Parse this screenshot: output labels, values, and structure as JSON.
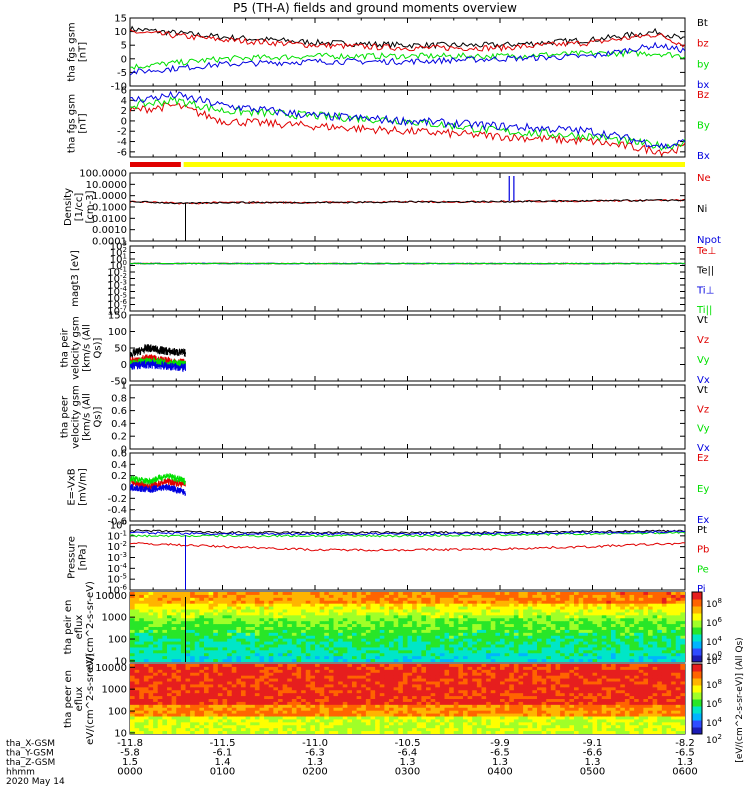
{
  "title": "P5 (TH-A) fields and ground moments overview",
  "colors": {
    "black": "#000000",
    "red": "#e00000",
    "green": "#00e000",
    "blue": "#0000e0",
    "yellow": "#ffff00",
    "bar_red": "#e00000"
  },
  "chart_data": [
    {
      "type": "line",
      "ylabel": "tha fgs gsm [nT]",
      "ylim": [
        -10,
        15
      ],
      "yticks": [
        15,
        10,
        5,
        0,
        -5,
        -10
      ],
      "legend": [
        "Bt",
        "bz",
        "by",
        "bx"
      ],
      "legend_colors": [
        "black",
        "red",
        "green",
        "blue"
      ],
      "x_hours": [
        0,
        1,
        2,
        3,
        4,
        5,
        5.7,
        6
      ],
      "series": [
        {
          "name": "Bt",
          "color": "black",
          "values": [
            11,
            8,
            6,
            5,
            5,
            7,
            10,
            7
          ]
        },
        {
          "name": "bz",
          "color": "red",
          "values": [
            10,
            7,
            5,
            4,
            4,
            6,
            9,
            5
          ]
        },
        {
          "name": "by",
          "color": "green",
          "values": [
            -3,
            0,
            1,
            1,
            1,
            2,
            2,
            1
          ]
        },
        {
          "name": "bx",
          "color": "blue",
          "values": [
            -5,
            -2,
            -1,
            -1,
            0,
            1,
            5,
            3
          ]
        }
      ]
    },
    {
      "type": "line",
      "ylabel": "tha fgs gsm [nT]",
      "ylim": [
        -7,
        6
      ],
      "yticks": [
        6,
        4,
        2,
        0,
        -2,
        -4,
        -6
      ],
      "legend": [
        "Bz",
        "By",
        "Bx"
      ],
      "legend_colors": [
        "red",
        "green",
        "blue"
      ],
      "x_hours": [
        0,
        0.5,
        1,
        2,
        3,
        4,
        5,
        5.8,
        6
      ],
      "series": [
        {
          "name": "Bz",
          "color": "red",
          "values": [
            2,
            3,
            0,
            -1,
            -2,
            -3,
            -4,
            -6,
            -5
          ]
        },
        {
          "name": "By",
          "color": "green",
          "values": [
            3,
            4,
            2,
            1,
            0,
            -2,
            -3,
            -5,
            -4
          ]
        },
        {
          "name": "Bx",
          "color": "blue",
          "values": [
            4,
            5,
            3,
            1,
            0,
            -1,
            -2,
            -5,
            -4
          ]
        }
      ]
    },
    {
      "type": "line",
      "ylabel": "Density [1/cc] [cm-3]",
      "ylim": [
        -4,
        2
      ],
      "log": true,
      "ytick_labels": [
        "100.0000",
        "10.0000",
        "1.0000",
        "0.1000",
        "0.0100",
        "0.0010",
        "0.0001"
      ],
      "legend": [
        "Ne",
        "Ni",
        "Npot"
      ],
      "legend_colors": [
        "red",
        "black",
        "blue"
      ],
      "x_hours": [
        0,
        0.6,
        1,
        2,
        3,
        4,
        5,
        6
      ],
      "series": [
        {
          "name": "Ne",
          "color": "red",
          "values": [
            0.3,
            0.2,
            0.25,
            0.25,
            0.28,
            0.3,
            0.35,
            0.4
          ]
        },
        {
          "name": "Ni",
          "color": "black",
          "values": [
            0.3,
            0.2,
            0.25,
            0.25,
            0.28,
            0.3,
            0.35,
            0.4
          ]
        }
      ]
    },
    {
      "type": "line",
      "ylabel": "magt3 [eV]",
      "ylim": [
        -7,
        3
      ],
      "log": true,
      "legend": [
        "Te⊥",
        "Te||",
        "Ti⊥",
        "Ti||"
      ],
      "legend_colors": [
        "red",
        "black",
        "blue",
        "green"
      ],
      "x_hours": [
        0,
        1,
        2,
        3,
        4,
        5,
        6
      ],
      "series": [
        {
          "name": "Te⊥",
          "color": "red",
          "values": [
            2,
            2,
            2,
            2,
            2,
            2,
            2
          ]
        },
        {
          "name": "Te||",
          "color": "black",
          "values": [
            2,
            2,
            2,
            2,
            2,
            2,
            2
          ]
        },
        {
          "name": "Ti⊥",
          "color": "blue",
          "values": [
            2,
            2,
            2,
            2,
            2,
            2,
            2
          ]
        },
        {
          "name": "Ti||",
          "color": "green",
          "values": [
            2,
            2,
            2,
            2,
            2,
            2,
            2
          ]
        }
      ]
    },
    {
      "type": "line",
      "ylabel": "tha peir velocity gsm [km/s (All Qs)]",
      "ylim": [
        -50,
        150
      ],
      "yticks": [
        150,
        100,
        50,
        0,
        -50
      ],
      "legend": [
        "Vt",
        "Vz",
        "Vy",
        "Vx"
      ],
      "legend_colors": [
        "black",
        "red",
        "green",
        "blue"
      ],
      "x_hours": [
        0,
        0.2,
        0.4,
        0.6
      ],
      "series": [
        {
          "name": "Vt",
          "color": "black",
          "values": [
            30,
            50,
            40,
            35
          ]
        },
        {
          "name": "Vz",
          "color": "red",
          "values": [
            10,
            20,
            10,
            5
          ]
        },
        {
          "name": "Vy",
          "color": "green",
          "values": [
            0,
            10,
            5,
            0
          ]
        },
        {
          "name": "Vx",
          "color": "blue",
          "values": [
            -5,
            0,
            -5,
            -10
          ]
        }
      ]
    },
    {
      "type": "line",
      "ylabel": "tha peer velocity gsm [km/s (All Qs)]",
      "ylim": [
        0,
        1
      ],
      "yticks": [
        1.0,
        0.8,
        0.6,
        0.4,
        0.2,
        0.0
      ],
      "legend": [
        "Vt",
        "Vz",
        "Vy",
        "Vx"
      ],
      "legend_colors": [
        "black",
        "red",
        "green",
        "blue"
      ]
    },
    {
      "type": "line",
      "ylabel": "E=-VxB [mV/m]",
      "ylim": [
        -0.6,
        0.6
      ],
      "yticks": [
        0.6,
        0.4,
        0.2,
        0.0,
        -0.2,
        -0.4,
        -0.6
      ],
      "legend": [
        "Ez",
        "Ey",
        "Ex"
      ],
      "legend_colors": [
        "red",
        "green",
        "blue"
      ],
      "x_hours": [
        0,
        0.2,
        0.4,
        0.6
      ],
      "series": [
        {
          "name": "Ez",
          "color": "red",
          "values": [
            0.1,
            0.0,
            0.1,
            0.05
          ]
        },
        {
          "name": "Ey",
          "color": "green",
          "values": [
            0.15,
            0.1,
            0.2,
            0.1
          ]
        },
        {
          "name": "Ex",
          "color": "blue",
          "values": [
            0.0,
            -0.05,
            0.0,
            -0.1
          ]
        }
      ]
    },
    {
      "type": "line",
      "ylabel": "Pressure [nPa]",
      "ylim": [
        -6,
        0
      ],
      "log": true,
      "legend": [
        "Pt",
        "Pb",
        "Pe",
        "Pi"
      ],
      "legend_colors": [
        "black",
        "red",
        "green",
        "blue"
      ],
      "x_hours": [
        0,
        1,
        2,
        3,
        4,
        5,
        6
      ],
      "series": [
        {
          "name": "Pt",
          "color": "black",
          "values": [
            0.3,
            0.2,
            0.2,
            0.2,
            0.2,
            0.25,
            0.3
          ]
        },
        {
          "name": "Pb",
          "color": "red",
          "values": [
            0.02,
            0.01,
            0.005,
            0.005,
            0.006,
            0.01,
            0.02
          ]
        },
        {
          "name": "Pe",
          "color": "green",
          "values": [
            0.1,
            0.1,
            0.1,
            0.1,
            0.12,
            0.15,
            0.2
          ]
        },
        {
          "name": "Pi",
          "color": "blue",
          "values": [
            0.2,
            0.15,
            0.15,
            0.15,
            0.17,
            0.2,
            0.25
          ]
        }
      ]
    },
    {
      "type": "heatmap",
      "ylabel": "tha peir en eflux eV/(cm^2-s-sr-eV)",
      "ylim": [
        10,
        10000
      ],
      "ytick_labels": [
        "10000",
        "1000",
        "100",
        "10"
      ]
    },
    {
      "type": "heatmap",
      "ylabel": "tha peer en eflux eV/(cm^2-s-sr-eV)",
      "ylim": [
        10,
        10000
      ],
      "ytick_labels": [
        "10000",
        "1000",
        "100",
        "10"
      ]
    }
  ],
  "colorbar": {
    "label": "[eV/(cm^2-s-sr-eV)] (All Qs)",
    "tick_labels": [
      "10^8",
      "10^6",
      "10^4",
      "10^2",
      "10^0",
      "10^8",
      "10^6",
      "10^4",
      "10^2"
    ]
  },
  "x_axis": {
    "rows": [
      {
        "label": "tha_X-GSM",
        "values": [
          "-11.8",
          "-11.5",
          "-11.0",
          "-10.5",
          "-9.9",
          "-9.1",
          "-8.2"
        ]
      },
      {
        "label": "tha_Y-GSM",
        "values": [
          "-5.8",
          "-6.1",
          "-6.3",
          "-6.4",
          "-6.5",
          "-6.6",
          "-6.5"
        ]
      },
      {
        "label": "tha_Z-GSM",
        "values": [
          "1.5",
          "1.4",
          "1.3",
          "1.3",
          "1.3",
          "1.3",
          "1.3"
        ]
      },
      {
        "label": "hhmm",
        "values": [
          "0000",
          "0100",
          "0200",
          "0300",
          "0400",
          "0500",
          "0600"
        ]
      }
    ],
    "date": "2020 May 14"
  }
}
